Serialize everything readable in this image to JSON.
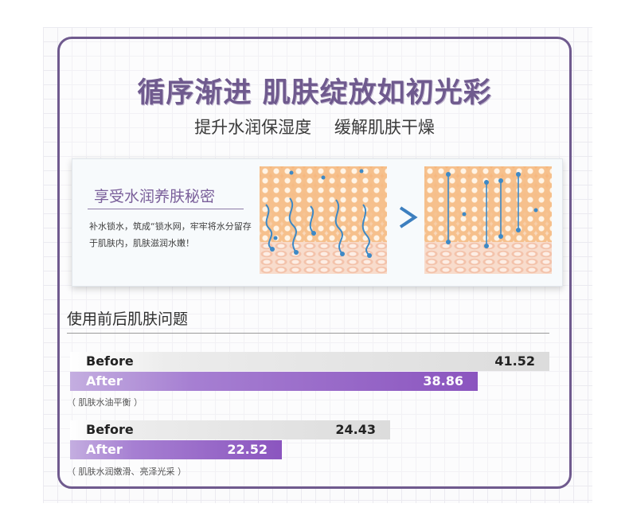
{
  "heading": {
    "title": "循序渐进 肌肤绽放如初光彩",
    "subtitle": "提升水润保湿度 缓解肌肤干燥"
  },
  "panel": {
    "title": "享受水润养肤秘密",
    "body": "补水锁水，筑成“锁水网，牢牢将水分留存于肌肤内，肌肤滋润水嫩！",
    "arrow_icon": "chevron-right-icon"
  },
  "results": {
    "title": "使用前后肌肤问题",
    "groups": [
      {
        "before_label": "Before",
        "before_value": "41.52",
        "after_label": "After",
        "after_value": "38.86",
        "note": "（ 肌肤水油平衡 ）"
      },
      {
        "before_label": "Before",
        "before_value": "24.43",
        "after_label": "After",
        "after_value": "22.52",
        "note": "（ 肌肤水润嫩滑、亮泽光采 ）"
      }
    ]
  },
  "colors": {
    "accent_purple": "#6f5a8e",
    "bar_after": "#8b55bf",
    "bar_before": "#dcdcdc",
    "water_blue": "#3d89c6"
  }
}
